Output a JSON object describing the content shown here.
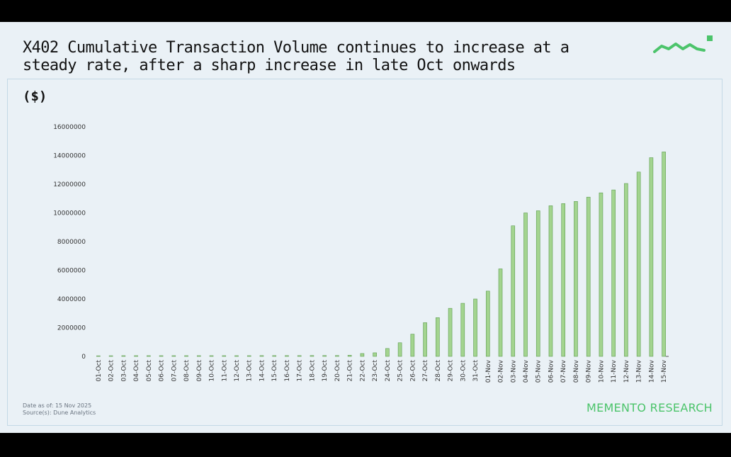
{
  "header": {
    "title": "X402 Cumulative Transaction Volume continues to increase at a steady rate, after a sharp increase in late Oct onwards",
    "unit_label": "($)"
  },
  "footer": {
    "date_note": "Date as of: 15 Nov 2025",
    "source_note": "Source(s): Dune Analytics",
    "brand": "MEMENTO RESEARCH"
  },
  "colors": {
    "bar_fill": "#a3d48f",
    "bar_edge": "#5c9c4f",
    "brand_green": "#4cc46b",
    "background": "#eaf1f6"
  },
  "chart_data": {
    "type": "bar",
    "title": "",
    "xlabel": "",
    "ylabel": "($)",
    "ylim": [
      0,
      16000000
    ],
    "yticks": [
      0,
      2000000,
      4000000,
      6000000,
      8000000,
      10000000,
      12000000,
      14000000,
      16000000
    ],
    "ytick_labels": [
      "0",
      "2000000",
      "4000000",
      "6000000",
      "8000000",
      "10000000",
      "12000000",
      "14000000",
      "16000000"
    ],
    "grid": false,
    "categories": [
      "01-Oct",
      "02-Oct",
      "03-Oct",
      "04-Oct",
      "05-Oct",
      "06-Oct",
      "07-Oct",
      "08-Oct",
      "09-Oct",
      "10-Oct",
      "11-Oct",
      "12-Oct",
      "13-Oct",
      "14-Oct",
      "15-Oct",
      "16-Oct",
      "17-Oct",
      "18-Oct",
      "19-Oct",
      "20-Oct",
      "21-Oct",
      "22-Oct",
      "23-Oct",
      "24-Oct",
      "25-Oct",
      "26-Oct",
      "27-Oct",
      "28-Oct",
      "29-Oct",
      "30-Oct",
      "31-Oct",
      "01-Nov",
      "02-Nov",
      "03-Nov",
      "04-Nov",
      "05-Nov",
      "06-Nov",
      "07-Nov",
      "08-Nov",
      "09-Nov",
      "10-Nov",
      "11-Nov",
      "12-Nov",
      "13-Nov",
      "14-Nov",
      "15-Nov"
    ],
    "values": [
      40000,
      45000,
      50000,
      50000,
      50000,
      50000,
      50000,
      50000,
      50000,
      50000,
      50000,
      50000,
      50000,
      55000,
      55000,
      55000,
      55000,
      60000,
      60000,
      60000,
      80000,
      200000,
      250000,
      550000,
      950000,
      1550000,
      2350000,
      2700000,
      3350000,
      3700000,
      4000000,
      4550000,
      6100000,
      9100000,
      10000000,
      10150000,
      10500000,
      10650000,
      10800000,
      11100000,
      11400000,
      11600000,
      12050000,
      12850000,
      13850000,
      14250000
    ]
  }
}
